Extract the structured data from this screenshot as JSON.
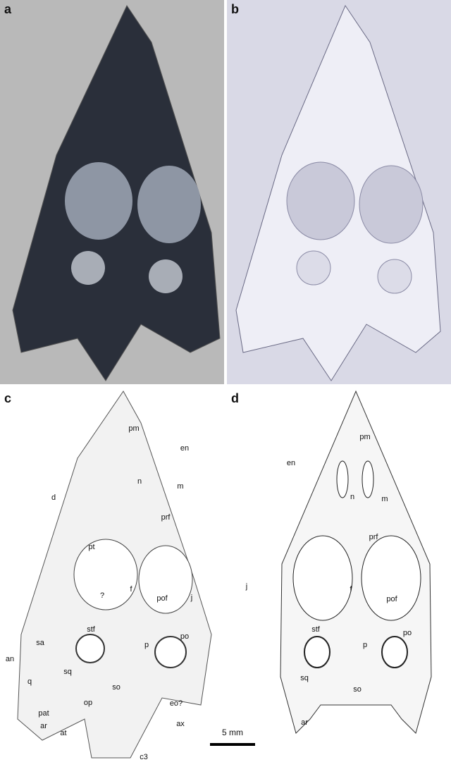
{
  "panels": [
    {
      "label": "a"
    },
    {
      "label": "b"
    },
    {
      "label": "c",
      "annotations": [
        "pm",
        "en",
        "d",
        "n",
        "m",
        "prf",
        "pt",
        "f",
        "j",
        "pof",
        "?",
        "an",
        "sa",
        "stf",
        "p",
        "po",
        "sq",
        "q",
        "so",
        "eo?",
        "op",
        "pat",
        "ax",
        "at",
        "ar",
        "c3"
      ]
    },
    {
      "label": "d",
      "annotations": [
        "pm",
        "en",
        "n",
        "m",
        "prf",
        "j",
        "f",
        "pof",
        "stf",
        "p",
        "po",
        "sq",
        "so",
        "ar"
      ]
    }
  ],
  "scale_bar": "5 mm"
}
